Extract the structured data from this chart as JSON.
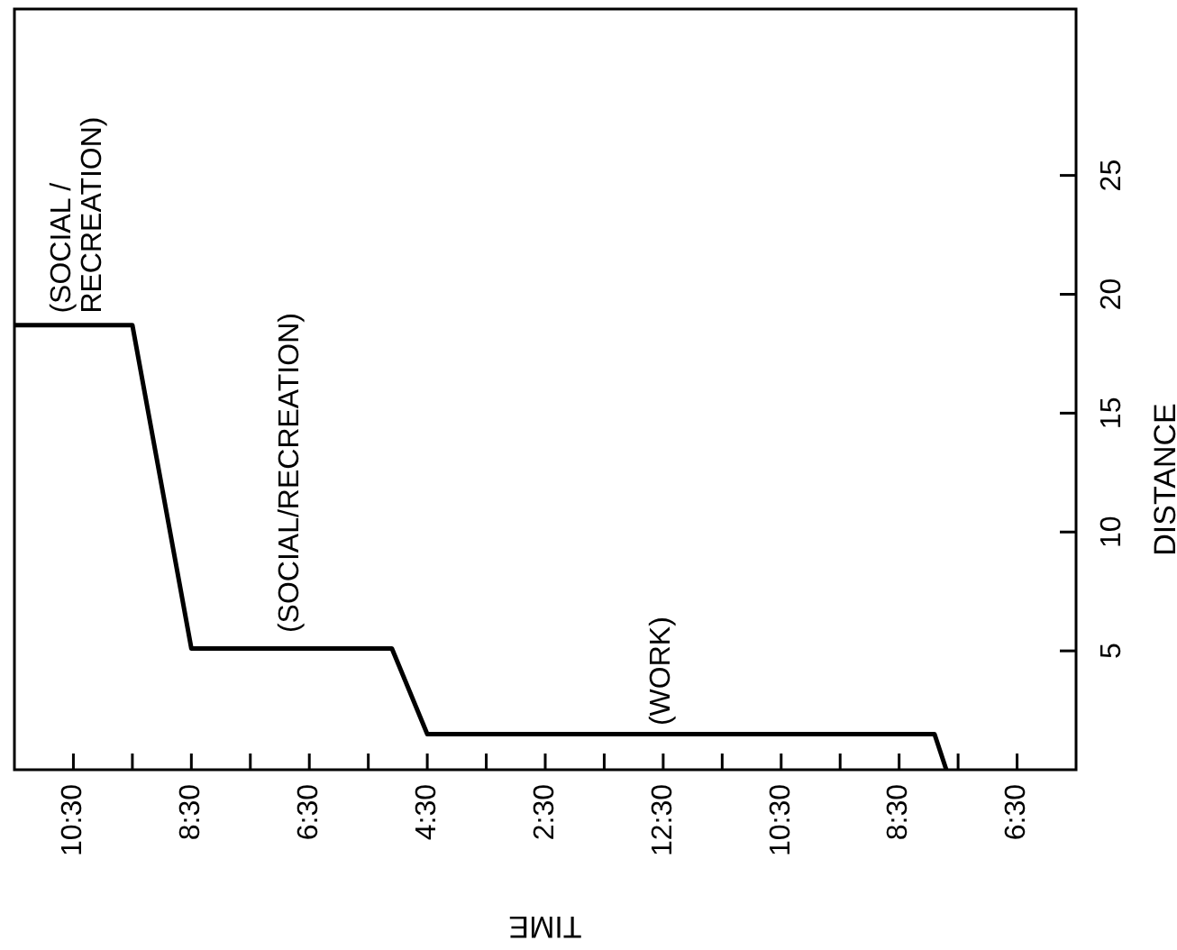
{
  "chart_data": {
    "type": "line",
    "xlabel": "TIME",
    "ylabel": "DISTANCE",
    "x": [
      "--01-01T23:30",
      "--01-01T21:30",
      "--01-01T20:30",
      "--01-01T17:06",
      "--01-01T16:30",
      "--01-01T07:54",
      "--01-01T07:42"
    ],
    "series": [
      {
        "color": "#000000",
        "values": [
          18.7,
          18.7,
          5.1,
          5.1,
          1.5,
          1.5,
          0
        ]
      }
    ],
    "xlim": [
      "--01-01T23:30",
      "--01-01T05:30"
    ],
    "xticks": [
      {
        "value": "--01-01T22:30",
        "label": "10:30"
      },
      {
        "value": "--01-01T21:30",
        "label": null
      },
      {
        "value": "--01-01T20:30",
        "label": "8:30"
      },
      {
        "value": "--01-01T19:30",
        "label": null
      },
      {
        "value": "--01-01T18:30",
        "label": "6:30"
      },
      {
        "value": "--01-01T17:30",
        "label": null
      },
      {
        "value": "--01-01T16:30",
        "label": "4:30"
      },
      {
        "value": "--01-01T15:30",
        "label": null
      },
      {
        "value": "--01-01T14:30",
        "label": "2:30"
      },
      {
        "value": "--01-01T13:30",
        "label": null
      },
      {
        "value": "--01-01T12:30",
        "label": "12:30"
      },
      {
        "value": "--01-01T11:30",
        "label": null
      },
      {
        "value": "--01-01T10:30",
        "label": "10:30"
      },
      {
        "value": "--01-01T09:30",
        "label": null
      },
      {
        "value": "--01-01T08:30",
        "label": "8:30"
      },
      {
        "value": "--01-01T07:30",
        "label": null
      },
      {
        "value": "--01-01T06:30",
        "label": "6:30"
      }
    ],
    "ylim": [
      0,
      32
    ],
    "yticks": [
      5,
      10,
      15,
      20,
      25
    ],
    "annotations": [
      "(SOCIAL /\nRECREATION)",
      "(SOCIAL/RECREATION)",
      "(WORK)"
    ],
    "grid": false,
    "legend": false,
    "marker": "none",
    "line_style": "solid"
  }
}
